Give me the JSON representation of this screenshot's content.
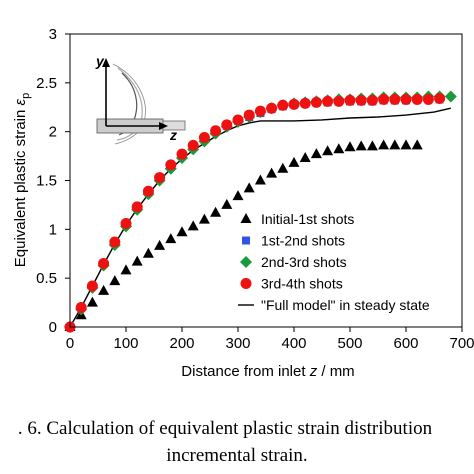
{
  "chart_data": {
    "type": "line",
    "xlabel_prefix": "Distance from inlet ",
    "xlabel_var": "z",
    "xlabel_suffix": " / mm",
    "ylabel": "Equivalent plastic strain ",
    "ylabel_var": "ε",
    "ylabel_sub": "p",
    "xlim": [
      0,
      700
    ],
    "ylim": [
      0,
      3
    ],
    "x_ticks": [
      "0",
      "100",
      "200",
      "300",
      "400",
      "500",
      "600",
      "700"
    ],
    "y_ticks": [
      "0",
      "0.5",
      "1",
      "1.5",
      "2",
      "2.5",
      "3"
    ],
    "grid": false,
    "legend_position": "bottom-right",
    "series": [
      {
        "name": "Initial-1st shots",
        "color": "#000000",
        "marker": "triangle",
        "x": [
          0,
          20,
          40,
          60,
          80,
          100,
          120,
          140,
          160,
          180,
          200,
          220,
          240,
          260,
          280,
          300,
          320,
          340,
          360,
          380,
          400,
          420,
          440,
          460,
          480,
          500,
          520,
          540,
          560,
          580,
          600,
          620
        ],
        "y": [
          0,
          0.12,
          0.25,
          0.37,
          0.47,
          0.58,
          0.67,
          0.75,
          0.83,
          0.9,
          0.97,
          1.03,
          1.1,
          1.17,
          1.25,
          1.34,
          1.42,
          1.5,
          1.57,
          1.62,
          1.68,
          1.73,
          1.77,
          1.8,
          1.82,
          1.84,
          1.85,
          1.85,
          1.86,
          1.86,
          1.86,
          1.86
        ]
      },
      {
        "name": "1st-2nd shots",
        "color": "#3355dd",
        "marker": "square",
        "x": [
          0,
          20,
          40,
          60,
          80,
          100,
          120,
          140,
          160,
          180,
          200,
          220,
          240,
          260,
          280,
          300,
          320,
          340,
          360,
          380,
          400,
          420,
          440,
          460,
          480,
          500,
          520,
          540,
          560,
          580,
          600,
          620,
          640,
          660
        ],
        "y": [
          0,
          0.2,
          0.42,
          0.65,
          0.86,
          1.05,
          1.22,
          1.38,
          1.52,
          1.64,
          1.75,
          1.84,
          1.92,
          2.0,
          2.06,
          2.11,
          2.15,
          2.19,
          2.23,
          2.26,
          2.28,
          2.29,
          2.3,
          2.3,
          2.31,
          2.31,
          2.31,
          2.31,
          2.32,
          2.32,
          2.32,
          2.33,
          2.33,
          2.33
        ]
      },
      {
        "name": "2nd-3rd shots",
        "color": "#1a9a3a",
        "marker": "diamond",
        "x": [
          0,
          20,
          40,
          60,
          80,
          100,
          120,
          140,
          160,
          180,
          200,
          220,
          240,
          260,
          280,
          300,
          320,
          340,
          360,
          380,
          400,
          420,
          440,
          460,
          480,
          500,
          520,
          540,
          560,
          580,
          600,
          620,
          640,
          660,
          680
        ],
        "y": [
          0,
          0.18,
          0.4,
          0.63,
          0.84,
          1.03,
          1.2,
          1.36,
          1.5,
          1.62,
          1.73,
          1.82,
          1.9,
          1.98,
          2.05,
          2.1,
          2.15,
          2.2,
          2.24,
          2.27,
          2.29,
          2.3,
          2.31,
          2.32,
          2.33,
          2.33,
          2.34,
          2.34,
          2.35,
          2.35,
          2.35,
          2.35,
          2.36,
          2.36,
          2.36
        ]
      },
      {
        "name": "3rd-4th shots",
        "color": "#ee1111",
        "marker": "circle",
        "x": [
          0,
          20,
          40,
          60,
          80,
          100,
          120,
          140,
          160,
          180,
          200,
          220,
          240,
          260,
          280,
          300,
          320,
          340,
          360,
          380,
          400,
          420,
          440,
          460,
          480,
          500,
          520,
          540,
          560,
          580,
          600,
          620,
          640,
          660
        ],
        "y": [
          0,
          0.2,
          0.42,
          0.65,
          0.87,
          1.06,
          1.23,
          1.39,
          1.53,
          1.66,
          1.77,
          1.86,
          1.94,
          2.01,
          2.07,
          2.12,
          2.17,
          2.21,
          2.24,
          2.27,
          2.28,
          2.29,
          2.3,
          2.31,
          2.31,
          2.32,
          2.32,
          2.32,
          2.33,
          2.33,
          2.33,
          2.33,
          2.33,
          2.34
        ]
      },
      {
        "name": "\"Full model\" in steady state",
        "color": "#000000",
        "marker": "none",
        "x": [
          0,
          20,
          40,
          60,
          80,
          100,
          120,
          140,
          160,
          180,
          200,
          220,
          240,
          260,
          280,
          300,
          320,
          340,
          360,
          380,
          400,
          450,
          500,
          550,
          600,
          650,
          680
        ],
        "y": [
          0,
          0.2,
          0.42,
          0.64,
          0.85,
          1.04,
          1.21,
          1.36,
          1.5,
          1.62,
          1.72,
          1.81,
          1.88,
          1.95,
          2.01,
          2.06,
          2.09,
          2.11,
          2.11,
          2.11,
          2.11,
          2.12,
          2.14,
          2.15,
          2.17,
          2.2,
          2.24
        ]
      }
    ]
  },
  "inset": {
    "y_label": "y",
    "z_label": "z"
  },
  "caption": {
    "line1": ". 6. Calculation of equivalent plastic strain distribution",
    "line2": "incremental strain."
  }
}
